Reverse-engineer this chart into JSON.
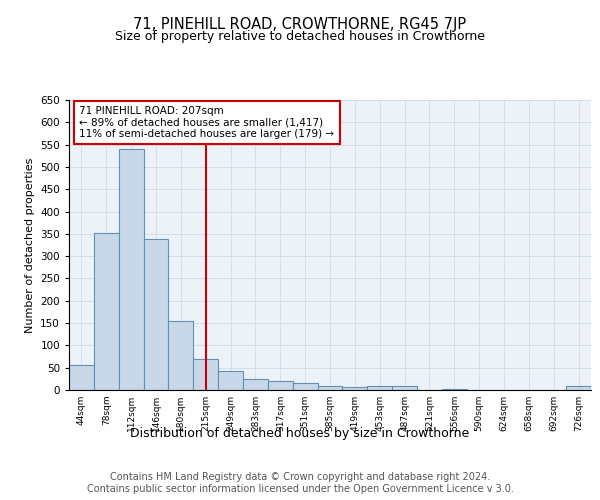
{
  "title": "71, PINEHILL ROAD, CROWTHORNE, RG45 7JP",
  "subtitle": "Size of property relative to detached houses in Crowthorne",
  "xlabel": "Distribution of detached houses by size in Crowthorne",
  "ylabel": "Number of detached properties",
  "categories": [
    "44sqm",
    "78sqm",
    "112sqm",
    "146sqm",
    "180sqm",
    "215sqm",
    "249sqm",
    "283sqm",
    "317sqm",
    "351sqm",
    "385sqm",
    "419sqm",
    "453sqm",
    "487sqm",
    "521sqm",
    "556sqm",
    "590sqm",
    "624sqm",
    "658sqm",
    "692sqm",
    "726sqm"
  ],
  "values": [
    57,
    353,
    541,
    338,
    155,
    70,
    42,
    25,
    20,
    15,
    8,
    7,
    8,
    8,
    0,
    3,
    0,
    0,
    0,
    0,
    8
  ],
  "bar_color": "#c8d8e8",
  "bar_edgecolor": "#6090b8",
  "bar_linewidth": 0.8,
  "ylim": [
    0,
    650
  ],
  "yticks": [
    0,
    50,
    100,
    150,
    200,
    250,
    300,
    350,
    400,
    450,
    500,
    550,
    600,
    650
  ],
  "red_line_index": 5,
  "red_line_color": "#cc0000",
  "property_sqm": 207,
  "annotation_text": "71 PINEHILL ROAD: 207sqm\n← 89% of detached houses are smaller (1,417)\n11% of semi-detached houses are larger (179) →",
  "annotation_box_color": "#ffffff",
  "annotation_box_edgecolor": "#cc0000",
  "grid_color": "#d4dde8",
  "background_color": "#edf2f8",
  "title_fontsize": 10.5,
  "subtitle_fontsize": 9,
  "xlabel_fontsize": 9,
  "ylabel_fontsize": 8,
  "footer_line1": "Contains HM Land Registry data © Crown copyright and database right 2024.",
  "footer_line2": "Contains public sector information licensed under the Open Government Licence v 3.0.",
  "footer_fontsize": 7
}
